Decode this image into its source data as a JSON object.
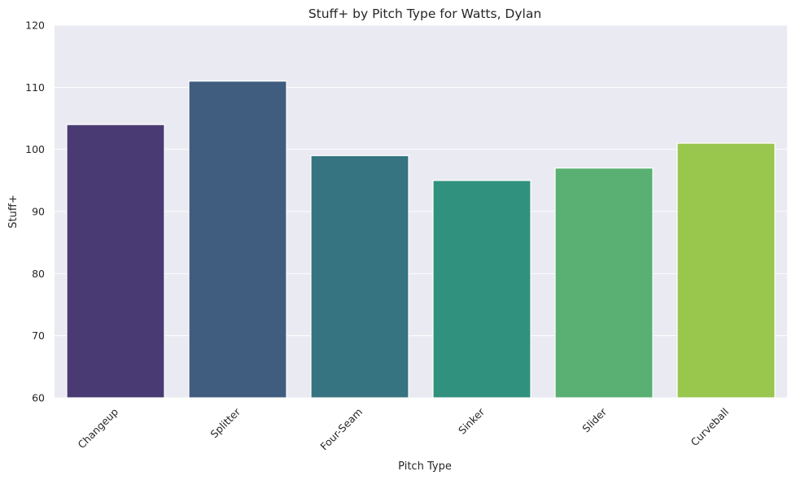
{
  "chart_data": {
    "type": "bar",
    "title": "Stuff+ by Pitch Type for Watts, Dylan",
    "xlabel": "Pitch Type",
    "ylabel": "Stuff+",
    "categories": [
      "Changeup",
      "Splitter",
      "Four-Seam",
      "Sinker",
      "Slider",
      "Curveball"
    ],
    "values": [
      104,
      111,
      99,
      95,
      97,
      101
    ],
    "colors": [
      "#4a3a73",
      "#405d80",
      "#357480",
      "#30917e",
      "#59b072",
      "#99c64d"
    ],
    "ylim": [
      60,
      120
    ],
    "yticks": [
      60,
      70,
      80,
      90,
      100,
      110,
      120
    ],
    "grid": true,
    "plot_background": "#eaeaf2",
    "grid_color": "#ffffff"
  }
}
